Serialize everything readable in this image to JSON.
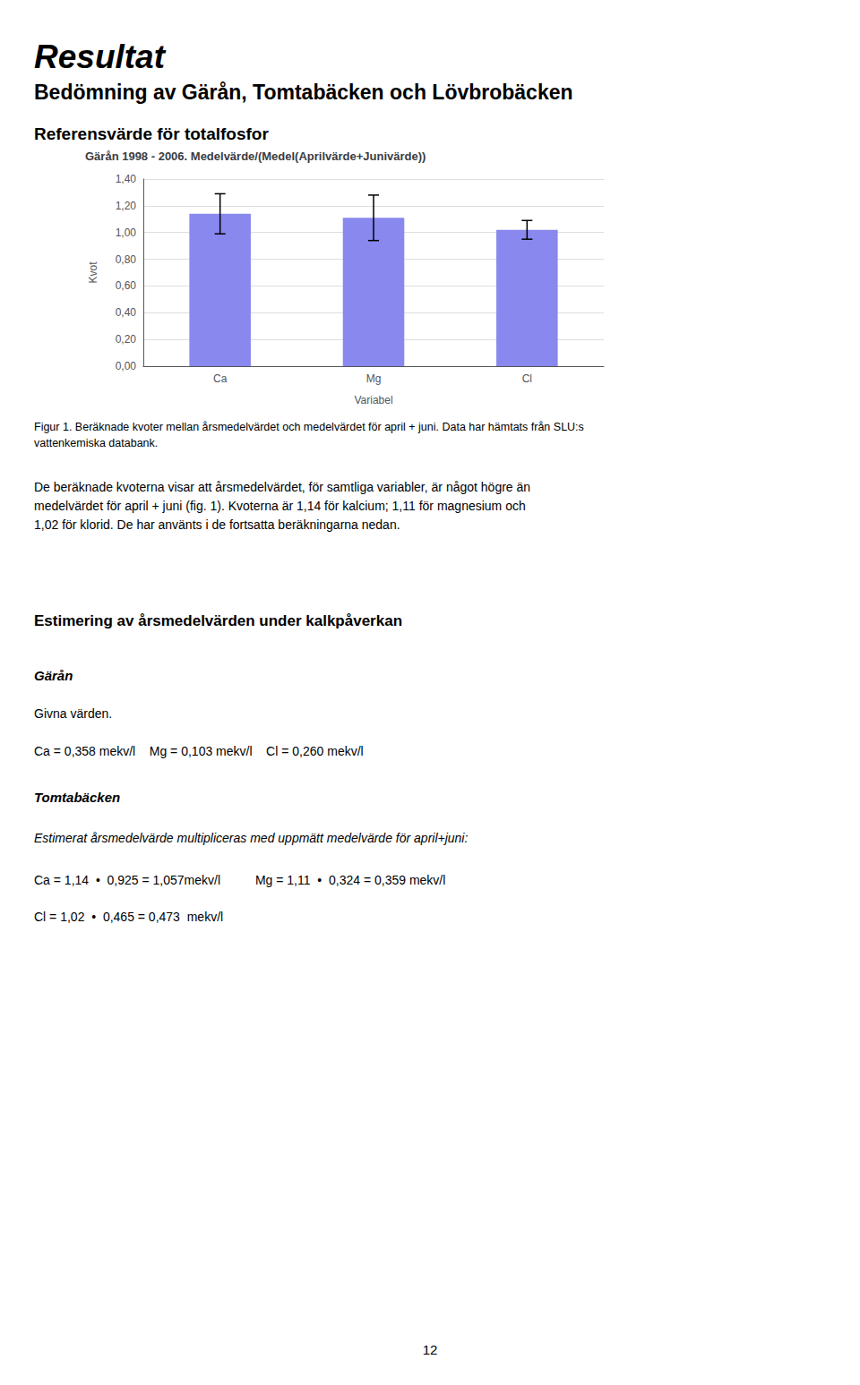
{
  "page_title": "Resultat",
  "subtitle1": "Bedömning av Gärån, Tomtabäcken och Lövbrobäcken",
  "subtitle2": "Referensvärde för totalfosfor",
  "fig1_caption": "Figur 1. Beräknade kvoter mellan årsmedelvärdet och medelvärdet för april + juni. Data har hämtats från SLU:s\nvattenkemiska databank.",
  "para1": "De beräknade kvoterna visar att årsmedelvärdet, för samtliga variabler, är något högre än\nmedelvärdet för april + juni (fig. 1). Kvoterna är 1,14 för kalcium; 1,11 för magnesium och\n1,02 för klorid. De har använts i de fortsatta beräkningarna nedan.",
  "section_title": "Estimering av årsmedelvärden under kalkpåverkan",
  "garan_label": "Gärån",
  "givna_text": "Givna värden.",
  "givna_values": "Ca = 0,358 mekv/l    Mg = 0,103 mekv/l    Cl = 0,260 mekv/l",
  "tomta_label": "Tomtabäcken",
  "estimerat_text": "Estimerat årsmedelvärde multipliceras med uppmätt medelvärde för april+juni:",
  "ca_line": "Ca = 1,14  •  0,925 = 1,057mekv/l          Mg = 1,11  •  0,324 = 0,359 mekv/l",
  "cl_line": "Cl = 1,02  •  0,465 = 0,473  mekv/l",
  "page_number": "12",
  "chart_data": {
    "type": "bar",
    "title": "Gärån 1998 - 2006. Medelvärde/(Medel(Aprilvärde+Junivärde))",
    "categories": [
      "Ca",
      "Mg",
      "Cl"
    ],
    "values": [
      1.14,
      1.11,
      1.02
    ],
    "errors": [
      0.15,
      0.17,
      0.07
    ],
    "color": "#8888EE",
    "xlabel": "Variabel",
    "ylabel": "Kvot",
    "ylim": [
      0.0,
      1.4
    ],
    "yticks": [
      {
        "value": 0.0,
        "label": "0,00"
      },
      {
        "value": 0.2,
        "label": "0,20"
      },
      {
        "value": 0.4,
        "label": "0,40"
      },
      {
        "value": 0.6,
        "label": "0,60"
      },
      {
        "value": 0.8,
        "label": "0,80"
      },
      {
        "value": 1.0,
        "label": "1,00"
      },
      {
        "value": 1.2,
        "label": "1,20"
      },
      {
        "value": 1.4,
        "label": "1,40"
      }
    ],
    "grid": true
  }
}
